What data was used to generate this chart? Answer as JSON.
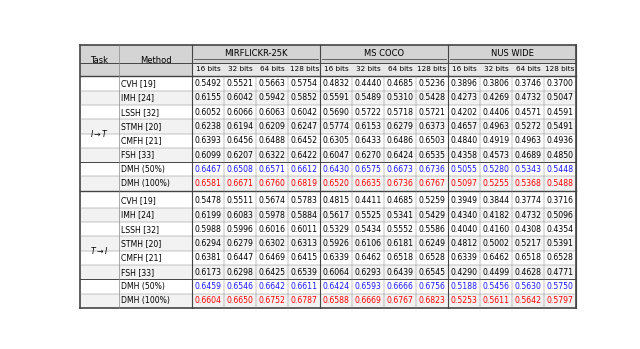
{
  "col_groups": [
    "MIRFLICKR-25K",
    "MS COCO",
    "NUS WIDE"
  ],
  "sub_cols": [
    "16 bits",
    "32 bits",
    "64 bits",
    "128 bits"
  ],
  "row_labels_task1": [
    "CVH [19]",
    "IMH [24]",
    "LSSH [32]",
    "STMH [20]",
    "CMFH [21]",
    "FSH [33]",
    "DMH (50%)",
    "DMH (100%)"
  ],
  "row_labels_task2": [
    "CVH [19]",
    "IMH [24]",
    "LSSH [32]",
    "STMH [20]",
    "CMFH [21]",
    "FSH [33]",
    "DMH (50%)",
    "DMH (100%)"
  ],
  "data_task1": [
    [
      0.5492,
      0.5521,
      0.5663,
      0.5754,
      0.4832,
      0.444,
      0.4685,
      0.5236,
      0.3896,
      0.3806,
      0.3746,
      0.37
    ],
    [
      0.6155,
      0.6042,
      0.5942,
      0.5852,
      0.5591,
      0.5489,
      0.531,
      0.5428,
      0.4273,
      0.4269,
      0.4732,
      0.5047
    ],
    [
      0.6052,
      0.6066,
      0.6063,
      0.6042,
      0.569,
      0.5722,
      0.5718,
      0.5721,
      0.4202,
      0.4406,
      0.4571,
      0.4591
    ],
    [
      0.6238,
      0.6194,
      0.6209,
      0.6247,
      0.5774,
      0.6153,
      0.6279,
      0.6373,
      0.4657,
      0.4963,
      0.5272,
      0.5491
    ],
    [
      0.6393,
      0.6456,
      0.6488,
      0.6452,
      0.6305,
      0.6433,
      0.6486,
      0.6503,
      0.484,
      0.4919,
      0.4963,
      0.4936
    ],
    [
      0.6099,
      0.6207,
      0.6322,
      0.6422,
      0.6047,
      0.627,
      0.6424,
      0.6535,
      0.4358,
      0.4573,
      0.4689,
      0.485
    ],
    [
      0.6467,
      0.6508,
      0.6571,
      0.6612,
      0.643,
      0.6575,
      0.6673,
      0.6736,
      0.5055,
      0.528,
      0.5343,
      0.5448
    ],
    [
      0.6581,
      0.6671,
      0.676,
      0.6819,
      0.652,
      0.6635,
      0.6736,
      0.6767,
      0.5097,
      0.5255,
      0.5368,
      0.5488
    ]
  ],
  "data_task2": [
    [
      0.5478,
      0.5511,
      0.5674,
      0.5783,
      0.4815,
      0.4411,
      0.4685,
      0.5259,
      0.3949,
      0.3844,
      0.3774,
      0.3716
    ],
    [
      0.6199,
      0.6083,
      0.5978,
      0.5884,
      0.5617,
      0.5525,
      0.5341,
      0.5429,
      0.434,
      0.4182,
      0.4732,
      0.5096
    ],
    [
      0.5988,
      0.5996,
      0.6016,
      0.6011,
      0.5329,
      0.5434,
      0.5552,
      0.5586,
      0.404,
      0.416,
      0.4308,
      0.4354
    ],
    [
      0.6294,
      0.6279,
      0.6302,
      0.6313,
      0.5926,
      0.6106,
      0.6181,
      0.6249,
      0.4812,
      0.5002,
      0.5217,
      0.5391
    ],
    [
      0.6381,
      0.6447,
      0.6469,
      0.6415,
      0.6339,
      0.6462,
      0.6518,
      0.6528,
      0.6339,
      0.6462,
      0.6518,
      0.6528
    ],
    [
      0.6173,
      0.6298,
      0.6425,
      0.6539,
      0.6064,
      0.6293,
      0.6439,
      0.6545,
      0.429,
      0.4499,
      0.4628,
      0.4771
    ],
    [
      0.6459,
      0.6546,
      0.6642,
      0.6611,
      0.6424,
      0.6593,
      0.6666,
      0.6756,
      0.5188,
      0.5456,
      0.563,
      0.575
    ],
    [
      0.6604,
      0.665,
      0.6752,
      0.6787,
      0.6588,
      0.6669,
      0.6767,
      0.6823,
      0.5253,
      0.5611,
      0.5642,
      0.5797
    ]
  ],
  "color_normal": "#000000",
  "color_blue": "#1a1aff",
  "color_red": "#ff0000",
  "header_bg": "#d4d4d4",
  "subheader_bg": "#e8e8e8",
  "white_bg": "#ffffff",
  "task_label_1": "I \\u2192 T",
  "task_label_2": "T \\u2192 I"
}
